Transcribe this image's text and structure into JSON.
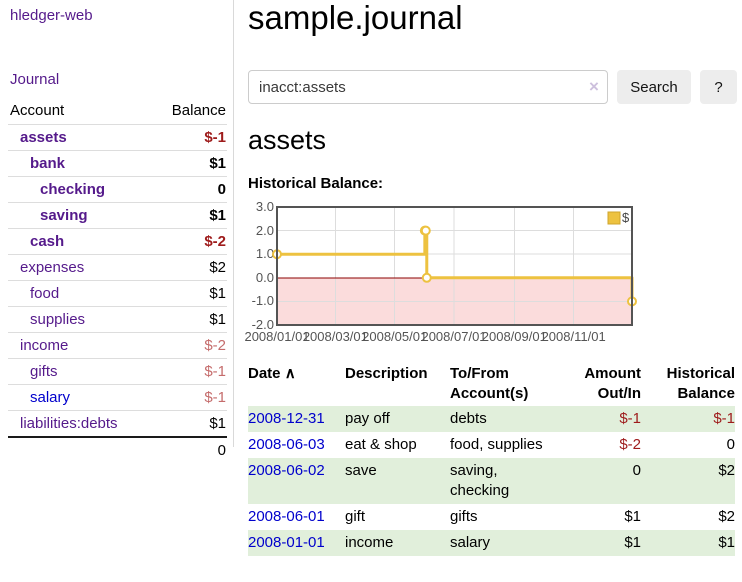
{
  "sidebar": {
    "brand": "hledger-web",
    "journal_link": "Journal",
    "accounts_table": {
      "headers": [
        "Account",
        "Balance"
      ],
      "rows": [
        {
          "account": "assets",
          "balance": "$-1",
          "level": 1,
          "bold": true,
          "balance_tone": "neg-strong",
          "link_tone": "purple"
        },
        {
          "account": "bank",
          "balance": "$1",
          "level": 2,
          "bold": true,
          "balance_tone": "",
          "link_tone": "purple"
        },
        {
          "account": "checking",
          "balance": "0",
          "level": 3,
          "bold": true,
          "balance_tone": "",
          "link_tone": "purple"
        },
        {
          "account": "saving",
          "balance": "$1",
          "level": 3,
          "bold": true,
          "balance_tone": "",
          "link_tone": "purple"
        },
        {
          "account": "cash",
          "balance": "$-2",
          "level": 2,
          "bold": true,
          "balance_tone": "neg-strong",
          "link_tone": "purple"
        },
        {
          "account": "expenses",
          "balance": "$2",
          "level": 1,
          "bold": false,
          "balance_tone": "",
          "link_tone": "purple"
        },
        {
          "account": "food",
          "balance": "$1",
          "level": 2,
          "bold": false,
          "balance_tone": "",
          "link_tone": "purple"
        },
        {
          "account": "supplies",
          "balance": "$1",
          "level": 2,
          "bold": false,
          "balance_tone": "",
          "link_tone": "purple"
        },
        {
          "account": "income",
          "balance": "$-2",
          "level": 1,
          "bold": false,
          "balance_tone": "neg-soft",
          "link_tone": "purple"
        },
        {
          "account": "gifts",
          "balance": "$-1",
          "level": 2,
          "bold": false,
          "balance_tone": "neg-soft",
          "link_tone": "purple"
        },
        {
          "account": "salary",
          "balance": "$-1",
          "level": 2,
          "bold": false,
          "balance_tone": "neg-soft",
          "link_tone": "blue"
        },
        {
          "account": "liabilities:debts",
          "balance": "$1",
          "level": 1,
          "bold": false,
          "balance_tone": "",
          "link_tone": "purple"
        }
      ],
      "total": "0"
    }
  },
  "main": {
    "title": "sample.journal",
    "search": {
      "value": "inacct:assets",
      "clear_icon": "×",
      "button_label": "Search",
      "help_label": "?"
    },
    "account_heading": "assets",
    "chart_heading": "Historical Balance:"
  },
  "chart_data": {
    "type": "line",
    "line_style": "step",
    "title": "Historical Balance",
    "series": [
      {
        "name": "$",
        "points": [
          {
            "date": "2008-01-01",
            "day": 0,
            "y": 1
          },
          {
            "date": "2008-06-01",
            "day": 152,
            "y": 2
          },
          {
            "date": "2008-06-02",
            "day": 153,
            "y": 2
          },
          {
            "date": "2008-06-03",
            "day": 154,
            "y": 0
          },
          {
            "date": "2008-12-31",
            "day": 365,
            "y": -1
          }
        ]
      }
    ],
    "ylim": [
      -2,
      3
    ],
    "xlim_days": [
      0,
      365
    ],
    "yticks": [
      {
        "label": "3.0",
        "v": 3
      },
      {
        "label": "2.0",
        "v": 2
      },
      {
        "label": "1.0",
        "v": 1
      },
      {
        "label": "0.0",
        "v": 0
      },
      {
        "label": "-1.0",
        "v": -1
      },
      {
        "label": "-2.0",
        "v": -2
      }
    ],
    "xticks": [
      {
        "label": "2008/01/01",
        "day": 0
      },
      {
        "label": "2008/03/01",
        "day": 60
      },
      {
        "label": "2008/05/01",
        "day": 121
      },
      {
        "label": "2008/07/01",
        "day": 182
      },
      {
        "label": "2008/09/01",
        "day": 244
      },
      {
        "label": "2008/11/01",
        "day": 305
      }
    ],
    "legend": {
      "label": "$",
      "position": "top-right"
    },
    "grid": true,
    "colors": {
      "line": "#edc240",
      "marker_fill": "#ffffff",
      "legend_border": "#cfa42c",
      "negative_region": "#fbdcdc",
      "zero_line": "#8b0000",
      "grid": "#dddddd",
      "border": "#545454",
      "axis_text": "#545454"
    }
  },
  "register_table": {
    "headers": [
      "Date",
      "Description",
      "To/From Account(s)",
      "Amount Out/In",
      "Historical Balance"
    ],
    "sort_icon": "∧",
    "rows": [
      {
        "date": "2008-12-31",
        "description": "pay off",
        "accounts": "debts",
        "amount": "$-1",
        "amount_negative": true,
        "balance": "$-1",
        "balance_negative": true
      },
      {
        "date": "2008-06-03",
        "description": "eat & shop",
        "accounts": "food, supplies",
        "amount": "$-2",
        "amount_negative": true,
        "balance": "0",
        "balance_negative": false
      },
      {
        "date": "2008-06-02",
        "description": "save",
        "accounts": "saving, checking",
        "amount": "0",
        "amount_negative": false,
        "balance": "$2",
        "balance_negative": false
      },
      {
        "date": "2008-06-01",
        "description": "gift",
        "accounts": "gifts",
        "amount": "$1",
        "amount_negative": false,
        "balance": "$2",
        "balance_negative": false
      },
      {
        "date": "2008-01-01",
        "description": "income",
        "accounts": "salary",
        "amount": "$1",
        "amount_negative": false,
        "balance": "$1",
        "balance_negative": false
      }
    ]
  },
  "colors": {
    "link_purple": "#551a8b",
    "link_blue": "#0000cc",
    "negative_strong": "#9e1b1b",
    "negative_soft": "#c56c6c",
    "row_stripe_green": "#e1efdb",
    "button_bg": "#ededed",
    "divider": "#d9d9d9"
  }
}
